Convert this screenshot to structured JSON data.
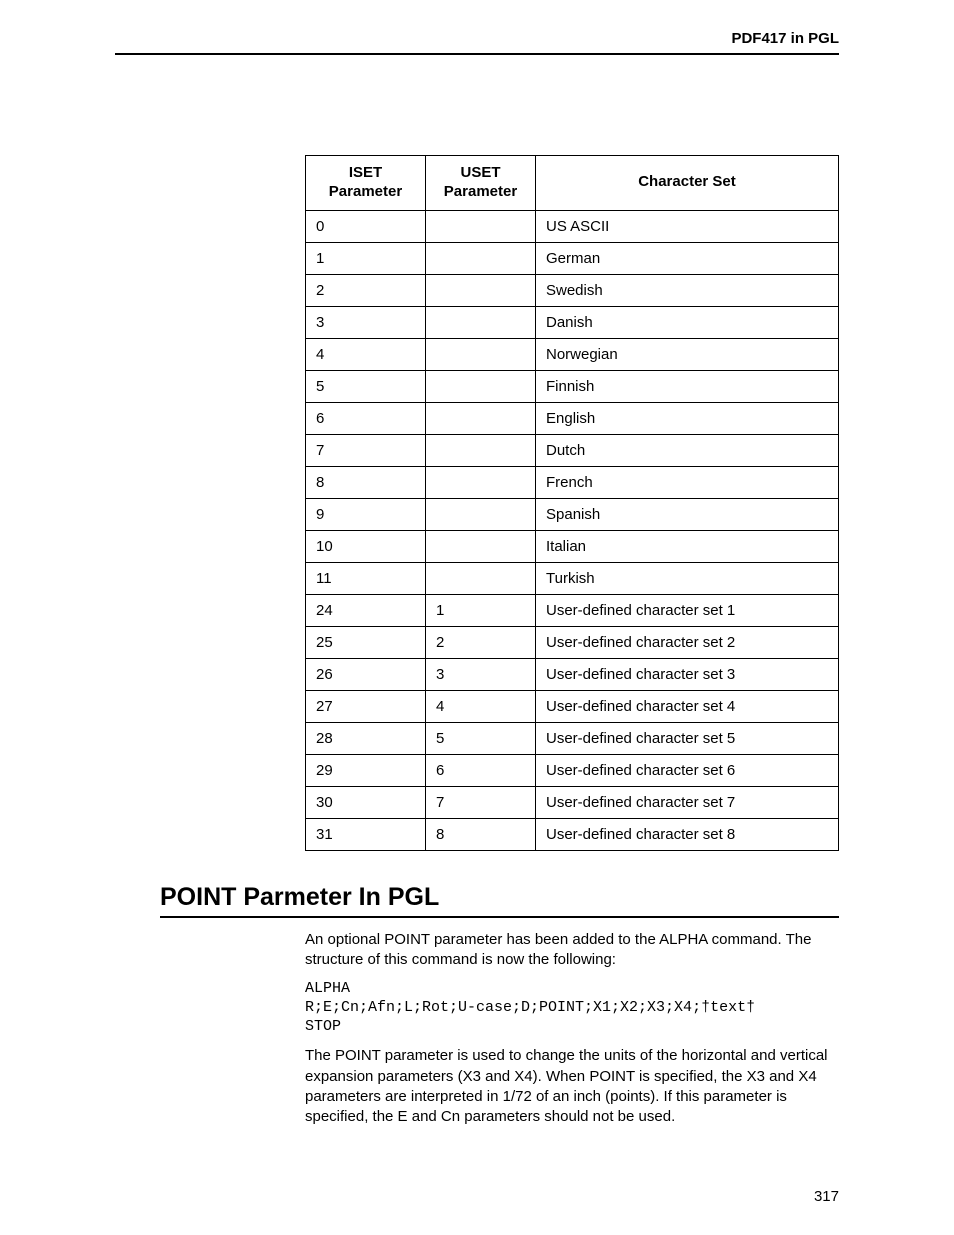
{
  "header": {
    "right_title": "PDF417 in PGL"
  },
  "table": {
    "columns": [
      {
        "label_line1": "ISET",
        "label_line2": "Parameter"
      },
      {
        "label_line1": "USET",
        "label_line2": "Parameter"
      },
      {
        "label_line1": "Character Set",
        "label_line2": ""
      }
    ],
    "rows": [
      {
        "iset": "0",
        "uset": "",
        "cset": "US ASCII"
      },
      {
        "iset": "1",
        "uset": "",
        "cset": "German"
      },
      {
        "iset": "2",
        "uset": "",
        "cset": "Swedish"
      },
      {
        "iset": "3",
        "uset": "",
        "cset": "Danish"
      },
      {
        "iset": "4",
        "uset": "",
        "cset": "Norwegian"
      },
      {
        "iset": "5",
        "uset": "",
        "cset": "Finnish"
      },
      {
        "iset": "6",
        "uset": "",
        "cset": "English"
      },
      {
        "iset": "7",
        "uset": "",
        "cset": "Dutch"
      },
      {
        "iset": "8",
        "uset": "",
        "cset": "French"
      },
      {
        "iset": "9",
        "uset": "",
        "cset": "Spanish"
      },
      {
        "iset": "10",
        "uset": "",
        "cset": "Italian"
      },
      {
        "iset": "11",
        "uset": "",
        "cset": "Turkish"
      },
      {
        "iset": "24",
        "uset": "1",
        "cset": "User-defined character set 1"
      },
      {
        "iset": "25",
        "uset": "2",
        "cset": "User-defined character set 2"
      },
      {
        "iset": "26",
        "uset": "3",
        "cset": "User-defined character set 3"
      },
      {
        "iset": "27",
        "uset": "4",
        "cset": "User-defined character set 4"
      },
      {
        "iset": "28",
        "uset": "5",
        "cset": "User-defined character set 5"
      },
      {
        "iset": "29",
        "uset": "6",
        "cset": "User-defined character set 6"
      },
      {
        "iset": "30",
        "uset": "7",
        "cset": "User-defined character set 7"
      },
      {
        "iset": "31",
        "uset": "8",
        "cset": "User-defined character set 8"
      }
    ]
  },
  "section": {
    "heading": "POINT Parmeter In PGL",
    "para1": "An optional POINT parameter has been added to the ALPHA command. The structure of this command is now the following:",
    "code": "ALPHA\nR;E;Cn;Afn;L;Rot;U-case;D;POINT;X1;X2;X3;X4;†text†\nSTOP",
    "para2": "The POINT parameter is used to change the units of the horizontal and vertical expansion parameters (X3 and X4). When POINT is specified, the X3 and X4 parameters are interpreted in 1/72 of an inch (points). If this parameter is specified, the E and Cn parameters should not be used."
  },
  "page_number": "317"
}
